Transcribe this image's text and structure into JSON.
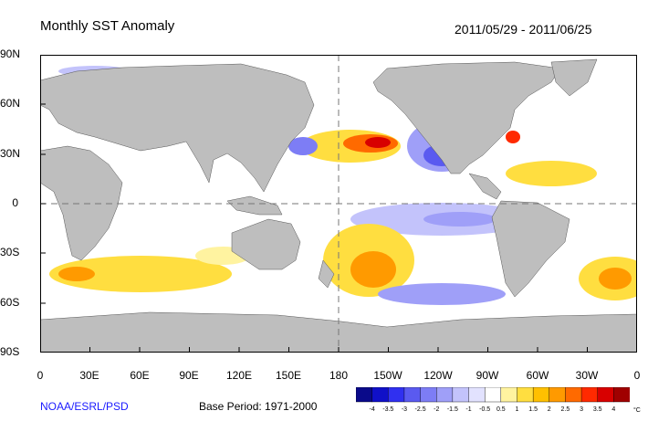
{
  "title": "Monthly SST Anomaly",
  "date_range": "2011/05/29 - 2011/06/25",
  "lat_labels": [
    "90N",
    "60N",
    "30N",
    "0",
    "30S",
    "60S",
    "90S"
  ],
  "lon_labels": [
    "0",
    "30E",
    "60E",
    "90E",
    "120E",
    "150E",
    "180",
    "150W",
    "120W",
    "90W",
    "60W",
    "30W",
    "0"
  ],
  "credit": "NOAA/ESRL/PSD",
  "base_period": "Base Period: 1971-2000",
  "colorbar": {
    "labels": [
      "-4",
      "-3.5",
      "-3",
      "-2.5",
      "-2",
      "-1.5",
      "-1",
      "-0.5",
      "0.5",
      "1",
      "1.5",
      "2",
      "2.5",
      "3",
      "3.5",
      "4"
    ],
    "unit": "°C",
    "colors": [
      "#0a0a8a",
      "#1010c8",
      "#3030f0",
      "#5a5af0",
      "#7d7df5",
      "#9f9ff8",
      "#c3c3fb",
      "#e2e2fe",
      "#ffffff",
      "#fff3a0",
      "#ffde40",
      "#ffc000",
      "#ff9a00",
      "#ff6a00",
      "#ff2a00",
      "#d80000",
      "#a00000"
    ]
  },
  "colors": {
    "land": "#bebebe",
    "ocean": "#ffffff",
    "equator_line": "#777777"
  }
}
